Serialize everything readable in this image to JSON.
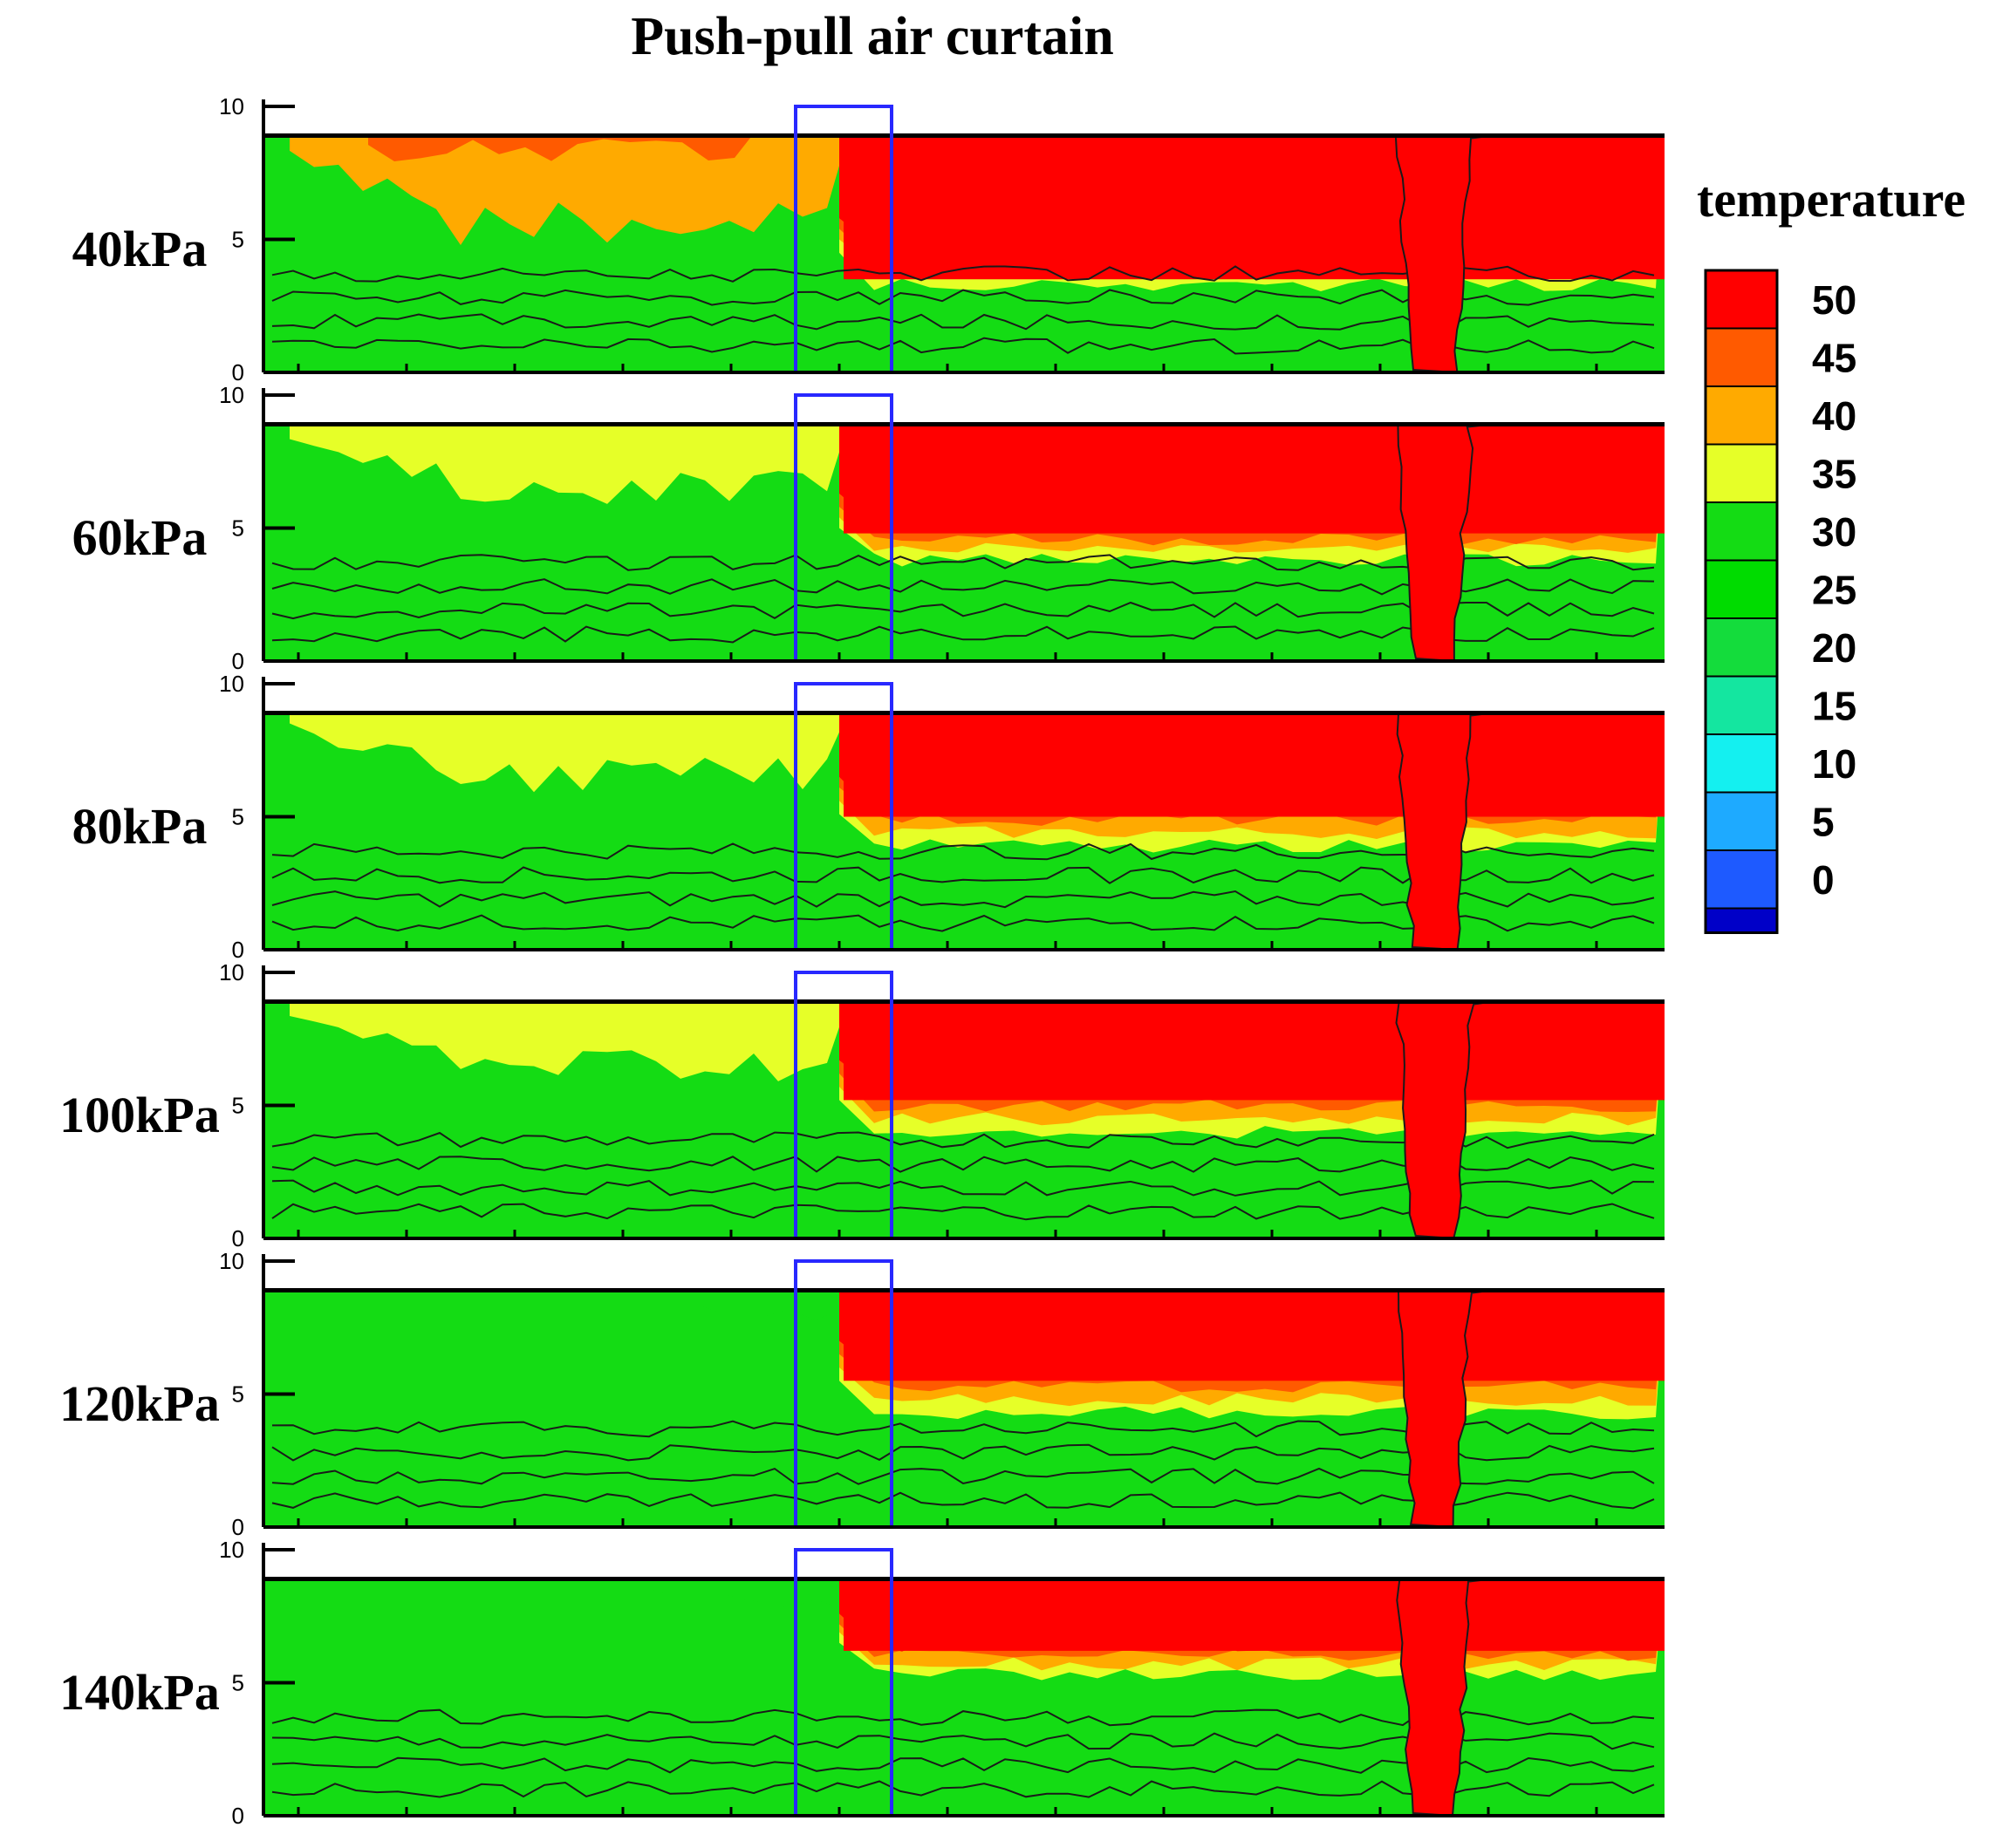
{
  "chart_data": {
    "type": "heatmap",
    "title": "Push-pull air curtain",
    "legend": {
      "title": "temperature",
      "levels": [
        0,
        5,
        10,
        15,
        20,
        25,
        30,
        35,
        40,
        45,
        50
      ],
      "colors": [
        "#0000c8",
        "#1e5aff",
        "#1eaaff",
        "#14f0f0",
        "#14e6a0",
        "#14dc3c",
        "#00dc00",
        "#14dc14",
        "#e6ff28",
        "#ffaa00",
        "#ff5a00",
        "#ff0000"
      ],
      "placement": "right"
    },
    "y_ticks": [
      "0",
      "5",
      "10"
    ],
    "ylim": [
      0,
      10
    ],
    "panels": [
      {
        "label": "40kPa",
        "left_warm_level": 40,
        "right_hot_base": 3.5,
        "right_profile": [
          4.6,
          4.2,
          3.8,
          3.3,
          2.9,
          2.6,
          2.2,
          1.6,
          0.9
        ]
      },
      {
        "label": "60kPa",
        "left_warm_level": 35,
        "right_hot_base": 4.8,
        "right_profile": [
          5.1,
          4.6,
          4.2,
          3.8,
          3.3,
          2.8,
          2.2,
          1.5,
          0.8
        ]
      },
      {
        "label": "80kPa",
        "left_warm_level": 35,
        "right_hot_base": 5.0,
        "right_profile": [
          5.3,
          4.9,
          4.4,
          3.9,
          3.4,
          2.8,
          2.2,
          1.4,
          0.7
        ]
      },
      {
        "label": "100kPa",
        "left_warm_level": 35,
        "right_hot_base": 5.2,
        "right_profile": [
          5.5,
          5.0,
          4.5,
          4.0,
          3.4,
          2.8,
          2.1,
          1.3,
          0.6
        ]
      },
      {
        "label": "120kPa",
        "left_warm_level": 30,
        "right_hot_base": 5.5,
        "right_profile": [
          5.8,
          5.3,
          4.8,
          4.3,
          3.7,
          3.0,
          2.3,
          1.4,
          0.6
        ]
      },
      {
        "label": "140kPa",
        "left_warm_level": 30,
        "right_hot_base": 6.2,
        "right_profile": [
          6.4,
          6.0,
          5.7,
          5.3,
          4.8,
          4.0,
          3.0,
          1.8,
          0.8
        ]
      }
    ]
  }
}
